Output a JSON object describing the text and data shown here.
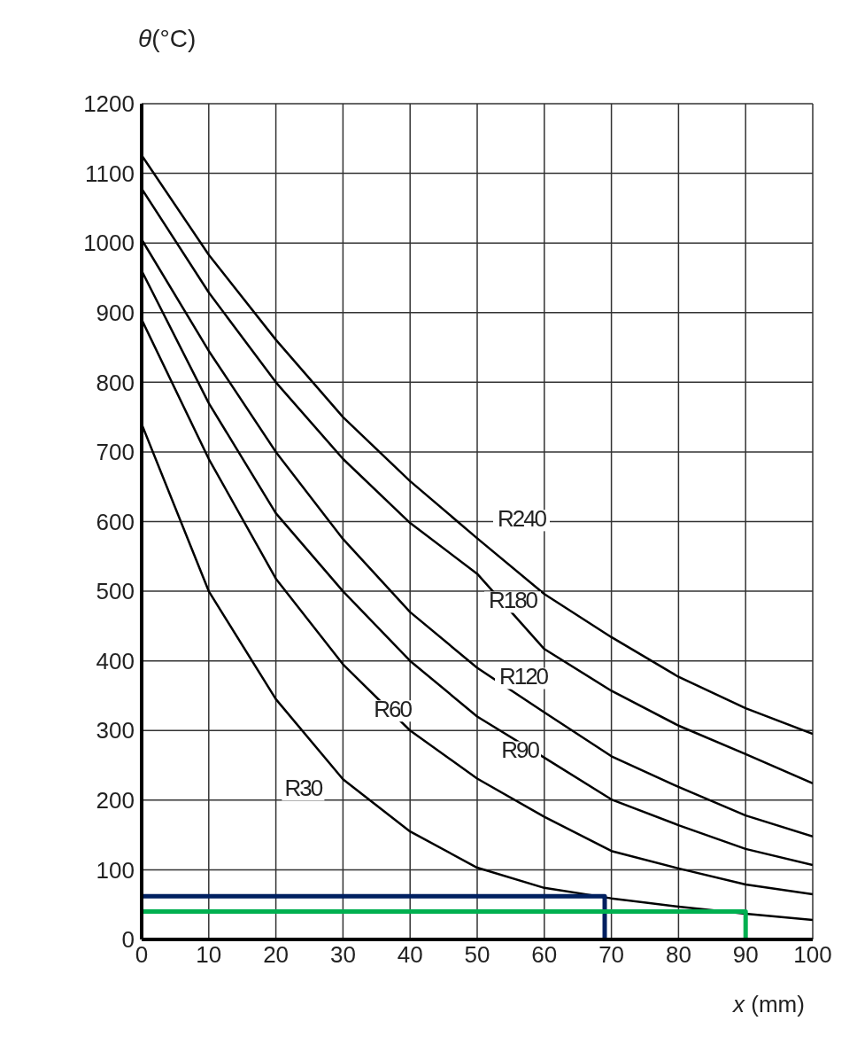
{
  "chart_data": {
    "type": "line",
    "xlabel": "x (mm)",
    "ylabel": "θ(°C)",
    "x": [
      0,
      10,
      20,
      30,
      40,
      50,
      60,
      70,
      80,
      90,
      100
    ],
    "series": [
      {
        "name": "R30",
        "color": "#000000",
        "values": [
          740,
          500,
          345,
          230,
          155,
          103,
          74,
          59,
          47,
          37,
          28
        ]
      },
      {
        "name": "R60",
        "color": "#000000",
        "values": [
          890,
          690,
          518,
          395,
          300,
          231,
          176,
          127,
          102,
          79,
          65
        ]
      },
      {
        "name": "R90",
        "color": "#000000",
        "values": [
          960,
          770,
          612,
          500,
          400,
          320,
          261,
          201,
          164,
          130,
          107
        ]
      },
      {
        "name": "R120",
        "color": "#000000",
        "values": [
          1005,
          845,
          700,
          575,
          470,
          390,
          326,
          263,
          219,
          178,
          148
        ]
      },
      {
        "name": "R180",
        "color": "#000000",
        "values": [
          1078,
          929,
          800,
          690,
          598,
          525,
          417,
          357,
          307,
          266,
          224
        ]
      },
      {
        "name": "R240",
        "color": "#000000",
        "values": [
          1126,
          983,
          861,
          750,
          658,
          576,
          496,
          434,
          377,
          332,
          295
        ]
      },
      {
        "color": "#002060",
        "x": [
          0,
          69,
          69
        ],
        "values": [
          62,
          62,
          0
        ]
      },
      {
        "color": "#00b050",
        "x": [
          0,
          90,
          90
        ],
        "values": [
          40,
          40,
          0
        ]
      }
    ],
    "xlim": [
      0,
      100
    ],
    "xticks": [
      0,
      10,
      20,
      30,
      40,
      50,
      60,
      70,
      80,
      90,
      100
    ],
    "ylim": [
      0,
      1200
    ],
    "yticks": [
      0,
      100,
      200,
      300,
      400,
      500,
      600,
      700,
      800,
      900,
      1000,
      1100,
      1200
    ],
    "grid": true,
    "marker": "none",
    "line_style": "solid"
  }
}
